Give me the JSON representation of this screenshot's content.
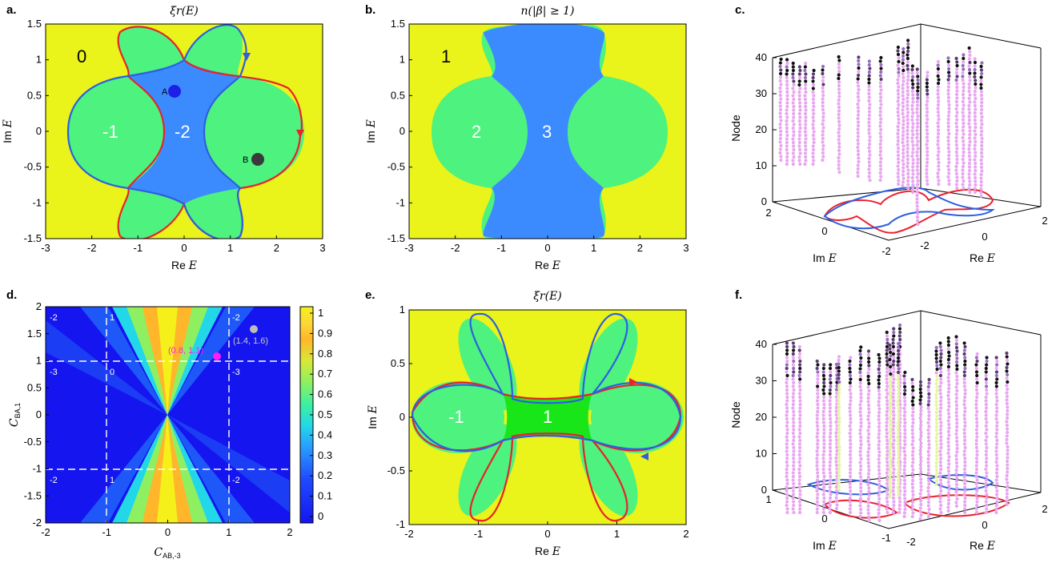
{
  "panels": {
    "a": {
      "label": "a.",
      "title": "ξr(E)",
      "xlabel_prefix": "Re",
      "xlabel_var": "E",
      "ylabel_prefix": "Im",
      "ylabel_var": "E",
      "xticks": [
        "-3",
        "-2",
        "-1",
        "0",
        "1",
        "2",
        "3"
      ],
      "yticks": [
        "1.5",
        "1",
        "0.5",
        "0",
        "-0.5",
        "-1",
        "-1.5"
      ],
      "regions": {
        "outer": "0",
        "left": "-1",
        "center": "-2"
      },
      "points": {
        "A": "A",
        "B": "B"
      }
    },
    "b": {
      "label": "b.",
      "title": "n(|β| ≥ 1)",
      "xlabel_prefix": "Re",
      "xlabel_var": "E",
      "ylabel_prefix": "Im",
      "ylabel_var": "E",
      "xticks": [
        "-3",
        "-2",
        "-1",
        "0",
        "1",
        "2",
        "3"
      ],
      "yticks": [
        "1.5",
        "1",
        "0.5",
        "0",
        "-0.5",
        "-1",
        "-1.5"
      ],
      "regions": {
        "outer": "1",
        "left": "2",
        "center": "3"
      }
    },
    "c": {
      "label": "c.",
      "zlabel": "Node",
      "xlabel_prefix": "Re",
      "xlabel_var": "E",
      "ylabel_prefix": "Im",
      "ylabel_var": "E",
      "zticks": [
        "0",
        "10",
        "20",
        "30",
        "40"
      ],
      "xticks": [
        "-2",
        "0",
        "2"
      ],
      "yticks": [
        "2",
        "0",
        "-2"
      ]
    },
    "d": {
      "label": "d.",
      "xlabel": "C",
      "xlabel_sub": "AB,-3",
      "ylabel": "C",
      "ylabel_sub": "BA,1",
      "xticks": [
        "-2",
        "-1",
        "0",
        "1",
        "2"
      ],
      "yticks": [
        "2",
        "1.5",
        "1",
        "0.5",
        "0",
        "-0.5",
        "-1",
        "-1.5",
        "-2"
      ],
      "cbar_ticks": [
        "1",
        "0.9",
        "0.8",
        "0.7",
        "0.6",
        "0.5",
        "0.4",
        "0.3",
        "0.2",
        "0.1",
        "0"
      ],
      "region_nums": {
        "tl": "-2",
        "tc": "1",
        "tr": "-2",
        "ml": "-3",
        "mc": "0",
        "mr": "-3",
        "bl": "-2",
        "bc": "1",
        "br": "-2"
      },
      "marker_magenta": "(0.8, 1.1)",
      "marker_gray": "(1.4, 1.6)"
    },
    "e": {
      "label": "e.",
      "title": "ξr(E)",
      "xlabel_prefix": "Re",
      "xlabel_var": "E",
      "ylabel_prefix": "Im",
      "ylabel_var": "E",
      "xticks": [
        "-2",
        "-1",
        "0",
        "1",
        "2"
      ],
      "yticks": [
        "1",
        "0.5",
        "0",
        "-0.5",
        "-1"
      ],
      "regions": {
        "left": "-1",
        "center": "1"
      }
    },
    "f": {
      "label": "f.",
      "zlabel": "Node",
      "xlabel_prefix": "Re",
      "xlabel_var": "E",
      "ylabel_prefix": "Im",
      "ylabel_var": "E",
      "zticks": [
        "0",
        "10",
        "20",
        "30",
        "40"
      ],
      "xticks": [
        "-2",
        "0",
        "2"
      ],
      "yticks": [
        "1",
        "0",
        "-1"
      ]
    }
  },
  "colors": {
    "yellow": "#eaf31a",
    "green": "#4df27f",
    "blue": "#3b8bff",
    "bright_green": "#19e619",
    "red": "#e8222b",
    "loop_blue": "#2d5fe0",
    "dark_navy": "#1515f0"
  },
  "chart_data": [
    {
      "type": "heatmap",
      "panel": "a",
      "title": "ξr(E)",
      "xlabel": "Re E",
      "ylabel": "Im E",
      "xlim": [
        -3,
        3
      ],
      "ylim": [
        -1.5,
        1.5
      ],
      "region_values": [
        0,
        -1,
        -2
      ],
      "markers": [
        {
          "name": "A",
          "x": -0.2,
          "y": 0.6
        },
        {
          "name": "B",
          "x": 1.6,
          "y": -0.35
        }
      ]
    },
    {
      "type": "heatmap",
      "panel": "b",
      "title": "n(|β| ≥ 1)",
      "xlabel": "Re E",
      "ylabel": "Im E",
      "xlim": [
        -3,
        3
      ],
      "ylim": [
        -1.5,
        1.5
      ],
      "region_values": [
        1,
        2,
        3
      ]
    },
    {
      "type": "scatter",
      "panel": "c",
      "zlabel": "Node",
      "xlabel": "Re E",
      "ylabel": "Im E",
      "zlim": [
        0,
        40
      ]
    },
    {
      "type": "heatmap",
      "panel": "d",
      "xlabel": "C_AB,-3",
      "ylabel": "C_BA,1",
      "xlim": [
        -2,
        2
      ],
      "ylim": [
        -2,
        2
      ],
      "clim": [
        0,
        1
      ],
      "markers": [
        {
          "label": "(0.8, 1.1)",
          "x": 0.8,
          "y": 1.1
        },
        {
          "label": "(1.4, 1.6)",
          "x": 1.4,
          "y": 1.6
        }
      ]
    },
    {
      "type": "heatmap",
      "panel": "e",
      "title": "ξr(E)",
      "xlabel": "Re E",
      "ylabel": "Im E",
      "xlim": [
        -2,
        2
      ],
      "ylim": [
        -1,
        1
      ],
      "region_values": [
        -1,
        1
      ]
    },
    {
      "type": "scatter",
      "panel": "f",
      "zlabel": "Node",
      "xlabel": "Re E",
      "ylabel": "Im E",
      "zlim": [
        0,
        40
      ]
    }
  ]
}
